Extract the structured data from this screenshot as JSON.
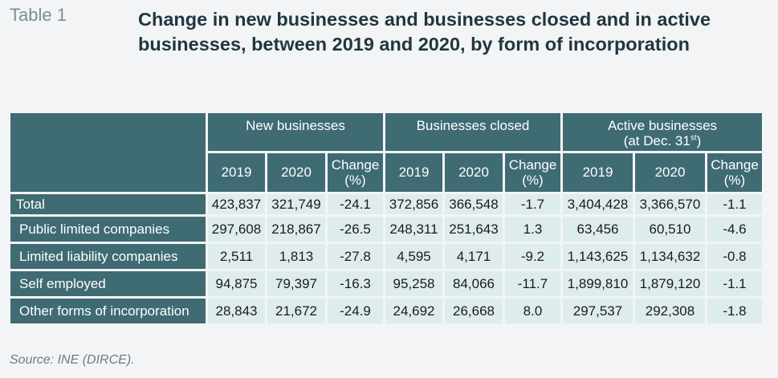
{
  "table_label": "Table 1",
  "title": "Change in new businesses and businesses closed and in active businesses, between 2019 and 2020, by form of incorporation",
  "groups": {
    "new": "New businesses",
    "closed": "Businesses closed",
    "active_line1": "Active businesses",
    "active_line2_prefix": "(at Dec. 31",
    "active_line2_sup": "st",
    "active_line2_suffix": ")"
  },
  "sub_headers": {
    "y2019": "2019",
    "y2020": "2020",
    "change_line1": "Change",
    "change_line2": "(%)"
  },
  "rows": [
    {
      "label": "Total",
      "values": [
        "423,837",
        "321,749",
        "-24.1",
        "372,856",
        "366,548",
        "-1.7",
        "3,404,428",
        "3,366,570",
        "-1.1"
      ]
    },
    {
      "label": "Public limited companies",
      "values": [
        "297,608",
        "218,867",
        "-26.5",
        "248,311",
        "251,643",
        "1.3",
        "63,456",
        "60,510",
        "-4.6"
      ]
    },
    {
      "label": "Limited liability companies",
      "values": [
        "2,511",
        "1,813",
        "-27.8",
        "4,595",
        "4,171",
        "-9.2",
        "1,143,625",
        "1,134,632",
        "-0.8"
      ]
    },
    {
      "label": "Self employed",
      "values": [
        "94,875",
        "79,397",
        "-16.3",
        "95,258",
        "84,066",
        "-11.7",
        "1,899,810",
        "1,879,120",
        "-1.1"
      ]
    },
    {
      "label": "Other forms of incorporation",
      "values": [
        "28,843",
        "21,672",
        "-24.9",
        "24,692",
        "26,668",
        "8.0",
        "297,537",
        "292,308",
        "-1.8"
      ]
    }
  ],
  "source": "Source: INE (DIRCE).",
  "colors": {
    "header_bg": "#3f6b73",
    "cell_bg": "#dfeced",
    "title": "#1f3640",
    "label_gray": "#7a8e96"
  }
}
